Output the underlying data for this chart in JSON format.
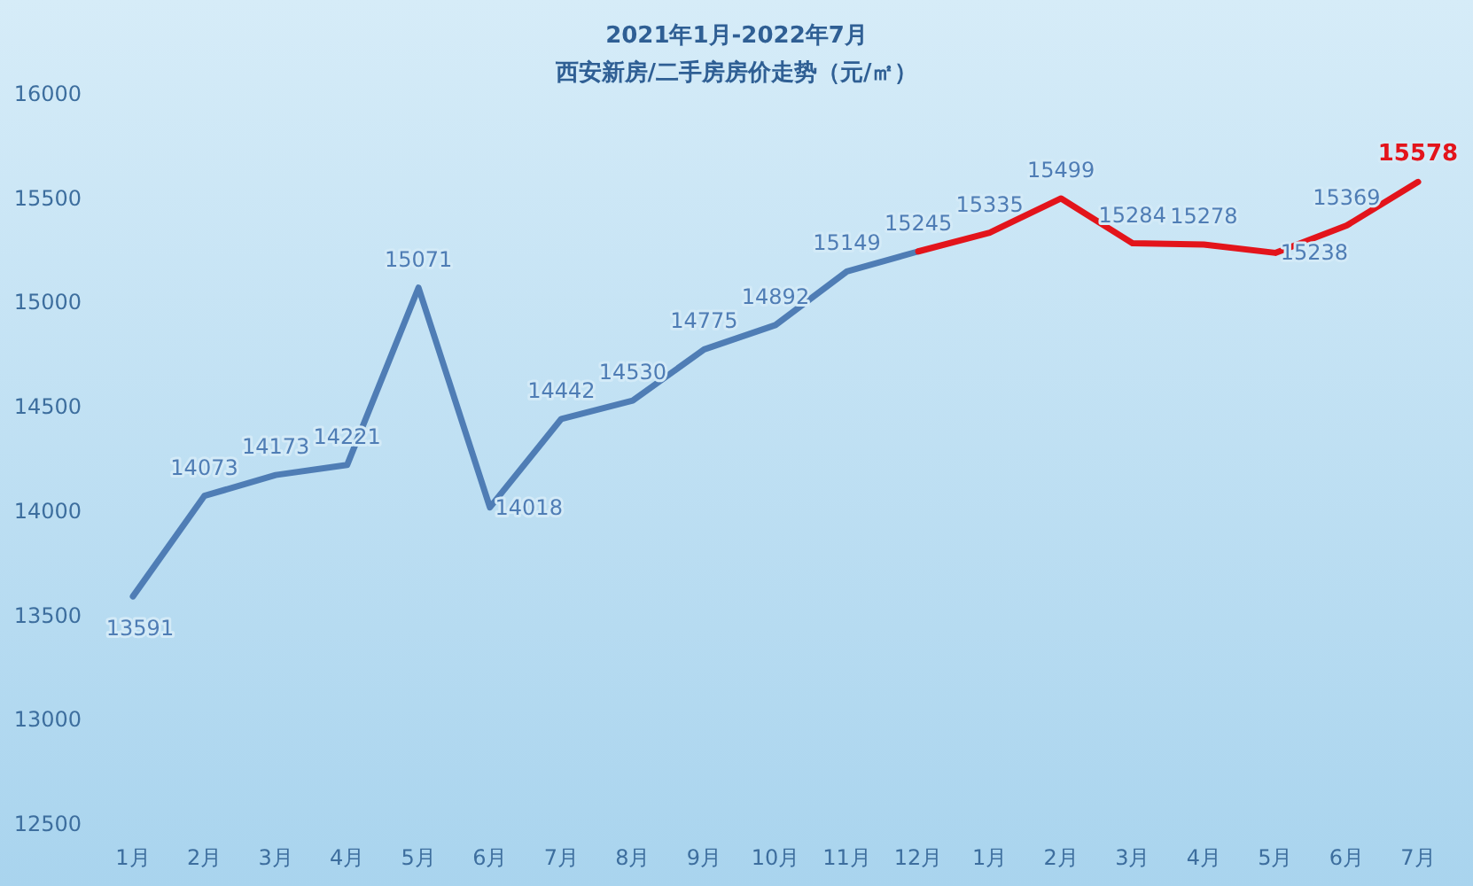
{
  "chart_data": {
    "type": "line",
    "title": "2021年1月-2022年7月",
    "subtitle": "西安新房/二手房房价走势（元/㎡）",
    "categories": [
      "1月",
      "2月",
      "3月",
      "4月",
      "5月",
      "6月",
      "7月",
      "8月",
      "9月",
      "10月",
      "11月",
      "12月",
      "1月",
      "2月",
      "3月",
      "4月",
      "5月",
      "6月",
      "7月"
    ],
    "ylim": [
      12500,
      16000
    ],
    "yticks": [
      12500,
      13000,
      13500,
      14000,
      14500,
      15000,
      15500,
      16000
    ],
    "grid": false,
    "marker": "none",
    "series": [
      {
        "color": "#4f7db5",
        "values": [
          13591,
          14073,
          14173,
          14221,
          15071,
          14018,
          14442,
          14530,
          14775,
          14892,
          15149,
          15245,
          null,
          null,
          null,
          null,
          null,
          null,
          null
        ],
        "value_labels": [
          "13591",
          "14073",
          "14173",
          "14221",
          "15071",
          "14018",
          "14442",
          "14530",
          "14775",
          "14892",
          "15149",
          "15245",
          null,
          null,
          null,
          null,
          null,
          null,
          null
        ]
      },
      {
        "color": "#e3141b",
        "values": [
          null,
          null,
          null,
          null,
          null,
          null,
          null,
          null,
          null,
          null,
          null,
          15245,
          15335,
          15499,
          15284,
          15278,
          15238,
          15369,
          15578
        ],
        "value_labels": [
          null,
          null,
          null,
          null,
          null,
          null,
          null,
          null,
          null,
          null,
          null,
          null,
          "15335",
          "15499",
          "15284",
          "15278",
          "15238",
          "15369",
          "15578"
        ]
      }
    ]
  }
}
